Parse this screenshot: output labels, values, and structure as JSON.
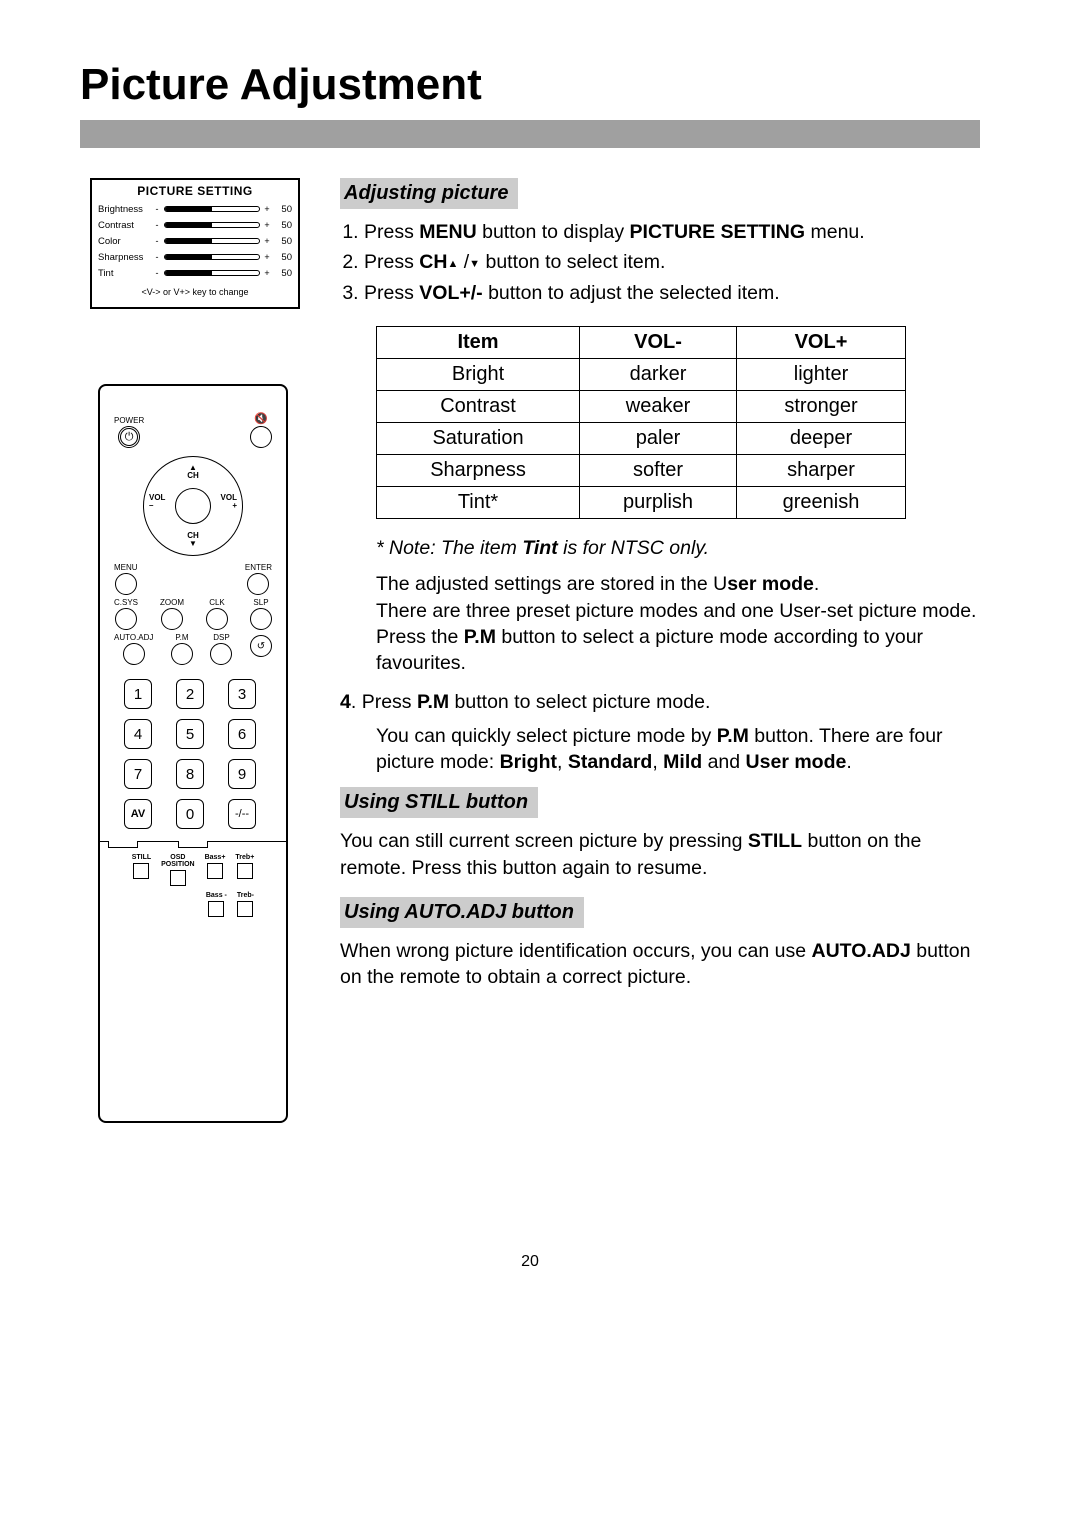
{
  "title": "Picture Adjustment",
  "page_number": "20",
  "osd": {
    "title": "PICTURE SETTING",
    "rows": [
      {
        "label": "Brightness",
        "value": "50"
      },
      {
        "label": "Contrast",
        "value": "50"
      },
      {
        "label": "Color",
        "value": "50"
      },
      {
        "label": "Sharpness",
        "value": "50"
      },
      {
        "label": "Tint",
        "value": "50"
      }
    ],
    "hint": "<V-> or V+> key to change"
  },
  "remote": {
    "power": "POWER",
    "ch": "CH",
    "vol_minus_top": "VOL",
    "vol_minus_bot": "–",
    "vol_plus_top": "VOL",
    "vol_plus_bot": "+",
    "menu": "MENU",
    "enter": "ENTER",
    "fn_row1": [
      "C.SYS",
      "ZOOM",
      "CLK",
      "SLP"
    ],
    "fn_row2": [
      "AUTO.ADJ",
      "P.M",
      "DSP",
      ""
    ],
    "num": [
      "1",
      "2",
      "3",
      "4",
      "5",
      "6",
      "7",
      "8",
      "9",
      "AV",
      "0",
      "-/--"
    ],
    "tiny_row1": [
      "STILL",
      "OSD\nPOSITION",
      "Bass+",
      "Treb+"
    ],
    "tiny_row2": [
      "Bass -",
      "Treb-"
    ]
  },
  "sections": {
    "s1": {
      "head": "Adjusting picture",
      "step1_a": "Press ",
      "step1_b": "MENU",
      "step1_c": " button to display ",
      "step1_d": "PICTURE SETTING",
      "step1_e": " menu.",
      "step2_a": "Press ",
      "step2_b": "CH",
      "step2_c": " button to select item.",
      "step3_a": "Press ",
      "step3_b": "VOL+/-",
      "step3_c": " button to adjust the selected item.",
      "table": {
        "headers": [
          "Item",
          "VOL-",
          "VOL+"
        ],
        "rows": [
          [
            "Bright",
            "darker",
            "lighter"
          ],
          [
            "Contrast",
            "weaker",
            "stronger"
          ],
          [
            "Saturation",
            "paler",
            "deeper"
          ],
          [
            "Sharpness",
            "softer",
            "sharper"
          ],
          [
            "Tint*",
            "purplish",
            "greenish"
          ]
        ]
      },
      "note_a": "* Note: The item ",
      "note_b": "Tint",
      "note_c": " is for NTSC only.",
      "para1_a": "The adjusted settings are stored in the U",
      "para1_b": "ser mode",
      "para1_c": ".",
      "para1_d": "There are three preset picture modes and one User-set picture mode. Press the ",
      "para1_e": "P.M",
      "para1_f": " button to select a picture mode according to your favourites.",
      "step4_a": ". Press ",
      "step4_b": "P.M",
      "step4_c": " button to select picture mode.",
      "para2_a": "You can quickly select picture mode by ",
      "para2_b": "P.M",
      "para2_c": " button. There are four picture mode: ",
      "para2_d": "Bright",
      "para2_e": "Standard",
      "para2_f": "Mild",
      "para2_g": "User mode"
    },
    "s2": {
      "head": "Using STILL button",
      "p_a": "You can still current screen picture by pressing ",
      "p_b": "STILL",
      "p_c": " button on the remote. Press this button again to resume."
    },
    "s3": {
      "head": "Using AUTO.ADJ button",
      "p_a": "When wrong picture identification occurs, you can use ",
      "p_b": "AUTO.ADJ",
      "p_c": " button on the remote to obtain a correct picture."
    }
  }
}
